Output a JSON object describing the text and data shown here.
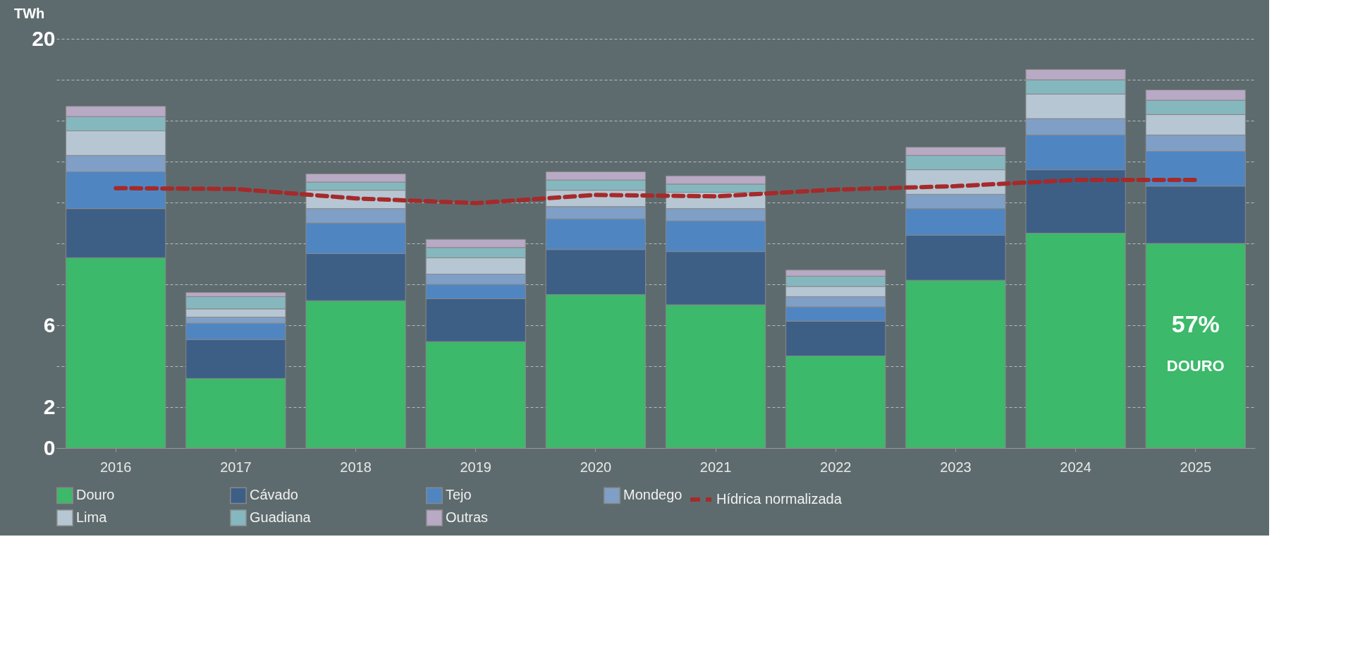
{
  "chart_data": {
    "type": "bar",
    "ylabel": "TWh",
    "stacked": true,
    "categories": [
      "2016",
      "2017",
      "2018",
      "2019",
      "2020",
      "2021",
      "2022",
      "2023",
      "2024",
      "2025"
    ],
    "series": [
      {
        "name": "Douro",
        "color": "#3cb96a",
        "values": [
          9.3,
          3.4,
          7.2,
          5.2,
          7.5,
          7.0,
          4.5,
          8.2,
          10.5,
          10.0
        ]
      },
      {
        "name": "Cávado",
        "color": "#3d5f86",
        "values": [
          2.4,
          1.9,
          2.3,
          2.1,
          2.2,
          2.6,
          1.7,
          2.2,
          3.1,
          2.8
        ]
      },
      {
        "name": "Tejo",
        "color": "#4f86c2",
        "values": [
          1.8,
          0.8,
          1.5,
          0.7,
          1.5,
          1.5,
          0.7,
          1.3,
          1.7,
          1.7
        ]
      },
      {
        "name": "Mondego",
        "color": "#7f9fc6",
        "values": [
          0.8,
          0.3,
          0.7,
          0.5,
          0.6,
          0.6,
          0.5,
          0.7,
          0.8,
          0.8
        ]
      },
      {
        "name": "Lima",
        "color": "#b7c6d3",
        "values": [
          1.2,
          0.4,
          0.9,
          0.8,
          0.8,
          0.8,
          0.5,
          1.2,
          1.2,
          1.0
        ]
      },
      {
        "name": "Guadiana",
        "color": "#85b7bf",
        "values": [
          0.7,
          0.6,
          0.4,
          0.5,
          0.5,
          0.4,
          0.5,
          0.7,
          0.7,
          0.7
        ]
      },
      {
        "name": "Outras",
        "color": "#b8a9c4",
        "values": [
          0.5,
          0.2,
          0.4,
          0.4,
          0.4,
          0.4,
          0.3,
          0.4,
          0.5,
          0.5
        ]
      },
      {
        "name": "Hídrica normalizada",
        "type": "line",
        "line_style": "dashed",
        "color": "#a52a2a",
        "values": [
          12.7,
          12.66,
          12.2,
          11.97,
          12.37,
          12.3,
          12.63,
          12.8,
          13.1,
          13.1
        ]
      }
    ],
    "ylim": [
      0,
      20
    ],
    "yticks": [
      0,
      2,
      {
        "value": 4,
        "label": null
      },
      6,
      {
        "value": 8,
        "label": null
      },
      {
        "value": 10,
        "label": null
      },
      {
        "value": 12,
        "label": null
      },
      {
        "value": 14,
        "label": null
      },
      {
        "value": 16,
        "label": null
      },
      {
        "value": 18,
        "label": null
      },
      20
    ],
    "grid": "y",
    "legend": "bottom",
    "annotations": [
      "57%",
      "DOURO"
    ]
  }
}
